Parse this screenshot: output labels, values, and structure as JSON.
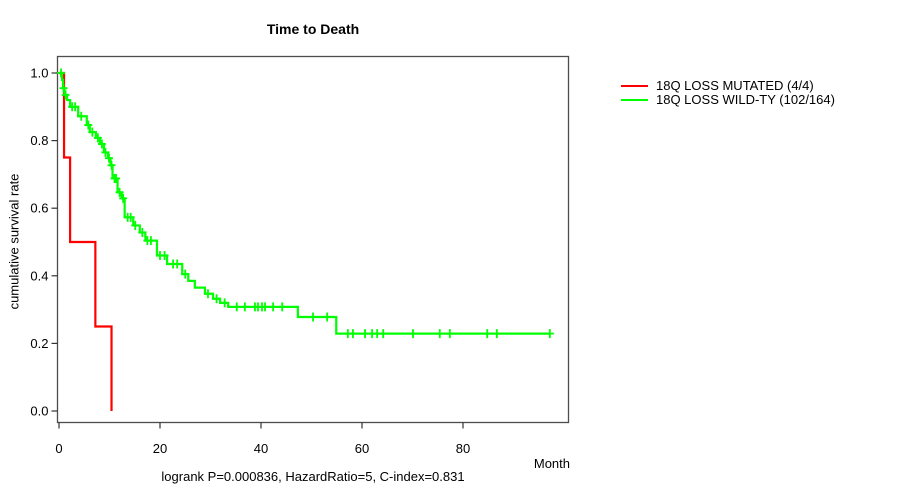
{
  "chart_data": {
    "type": "line",
    "subtype": "kaplan-meier-step",
    "title": "Time to Death",
    "xlabel": "Month",
    "ylabel": "cumulative survival rate",
    "footnote": "logrank P=0.000836, HazardRatio=5, C-index=0.831",
    "xlim": [
      0,
      101
    ],
    "ylim": [
      0.0,
      1.0
    ],
    "grid": false,
    "legend_position": "right-outside",
    "axis_color": "#4d4d4d",
    "tick_color": "#333333",
    "text_color": "#000000",
    "xticks": [
      {
        "v": 0,
        "label": "0"
      },
      {
        "v": 20,
        "label": "20"
      },
      {
        "v": 40,
        "label": "40"
      },
      {
        "v": 60,
        "label": "60"
      },
      {
        "v": 80,
        "label": "80"
      }
    ],
    "yticks": [
      {
        "v": 0.0,
        "label": "0.0"
      },
      {
        "v": 0.2,
        "label": "0.2"
      },
      {
        "v": 0.4,
        "label": "0.4"
      },
      {
        "v": 0.6,
        "label": "0.6"
      },
      {
        "v": 0.8,
        "label": "0.8"
      },
      {
        "v": 1.0,
        "label": "1.0"
      }
    ],
    "series": [
      {
        "name": "18Q LOSS MUTATED (4/4)",
        "color": "#FF0000",
        "start": [
          0,
          1.0
        ],
        "steps": [
          [
            1.0,
            0.75
          ],
          [
            2.2,
            0.5
          ],
          [
            7.2,
            0.25
          ],
          [
            10.4,
            0.0
          ]
        ],
        "end": 10.4,
        "censors": []
      },
      {
        "name": "18Q LOSS WILD-TY (102/164)",
        "color": "#00FF00",
        "start": [
          0,
          1.0
        ],
        "steps": [
          [
            0.6,
            0.98
          ],
          [
            0.8,
            0.955
          ],
          [
            1.1,
            0.935
          ],
          [
            1.6,
            0.92
          ],
          [
            2.2,
            0.9
          ],
          [
            3.8,
            0.872
          ],
          [
            5.5,
            0.846
          ],
          [
            6.1,
            0.825
          ],
          [
            7.3,
            0.808
          ],
          [
            8.1,
            0.79
          ],
          [
            8.9,
            0.765
          ],
          [
            9.7,
            0.748
          ],
          [
            10.2,
            0.727
          ],
          [
            10.6,
            0.688
          ],
          [
            11.6,
            0.647
          ],
          [
            12.4,
            0.629
          ],
          [
            13.0,
            0.573
          ],
          [
            14.7,
            0.549
          ],
          [
            16.0,
            0.528
          ],
          [
            17.1,
            0.504
          ],
          [
            19.4,
            0.46
          ],
          [
            21.4,
            0.435
          ],
          [
            24.4,
            0.405
          ],
          [
            25.6,
            0.385
          ],
          [
            26.9,
            0.365
          ],
          [
            28.9,
            0.347
          ],
          [
            30.5,
            0.332
          ],
          [
            31.9,
            0.32
          ],
          [
            33.5,
            0.308
          ],
          [
            47.3,
            0.278
          ],
          [
            54.9,
            0.229
          ]
        ],
        "end": 97.2,
        "censors": [
          [
            0.4,
            1.0
          ],
          [
            0.9,
            0.955
          ],
          [
            1.3,
            0.935
          ],
          [
            2.6,
            0.9
          ],
          [
            3.2,
            0.9
          ],
          [
            4.4,
            0.872
          ],
          [
            5.8,
            0.846
          ],
          [
            6.6,
            0.825
          ],
          [
            7.7,
            0.808
          ],
          [
            8.5,
            0.79
          ],
          [
            9.2,
            0.765
          ],
          [
            9.9,
            0.748
          ],
          [
            10.4,
            0.727
          ],
          [
            11.0,
            0.688
          ],
          [
            11.3,
            0.688
          ],
          [
            12.0,
            0.647
          ],
          [
            12.7,
            0.629
          ],
          [
            13.6,
            0.573
          ],
          [
            14.2,
            0.573
          ],
          [
            15.1,
            0.549
          ],
          [
            16.5,
            0.528
          ],
          [
            17.5,
            0.504
          ],
          [
            18.2,
            0.504
          ],
          [
            20.0,
            0.46
          ],
          [
            20.9,
            0.46
          ],
          [
            22.6,
            0.435
          ],
          [
            23.4,
            0.435
          ],
          [
            25.0,
            0.405
          ],
          [
            29.5,
            0.347
          ],
          [
            31.2,
            0.332
          ],
          [
            32.8,
            0.32
          ],
          [
            35.2,
            0.308
          ],
          [
            36.8,
            0.308
          ],
          [
            38.8,
            0.308
          ],
          [
            39.4,
            0.308
          ],
          [
            40.2,
            0.308
          ],
          [
            40.8,
            0.308
          ],
          [
            42.4,
            0.308
          ],
          [
            44.2,
            0.308
          ],
          [
            50.3,
            0.278
          ],
          [
            53.1,
            0.278
          ],
          [
            57.2,
            0.229
          ],
          [
            58.2,
            0.229
          ],
          [
            60.6,
            0.229
          ],
          [
            62.0,
            0.229
          ],
          [
            63.0,
            0.229
          ],
          [
            64.2,
            0.229
          ],
          [
            70.1,
            0.229
          ],
          [
            75.4,
            0.229
          ],
          [
            77.4,
            0.229
          ],
          [
            84.8,
            0.229
          ],
          [
            86.7,
            0.229
          ],
          [
            97.2,
            0.229
          ]
        ]
      }
    ]
  }
}
